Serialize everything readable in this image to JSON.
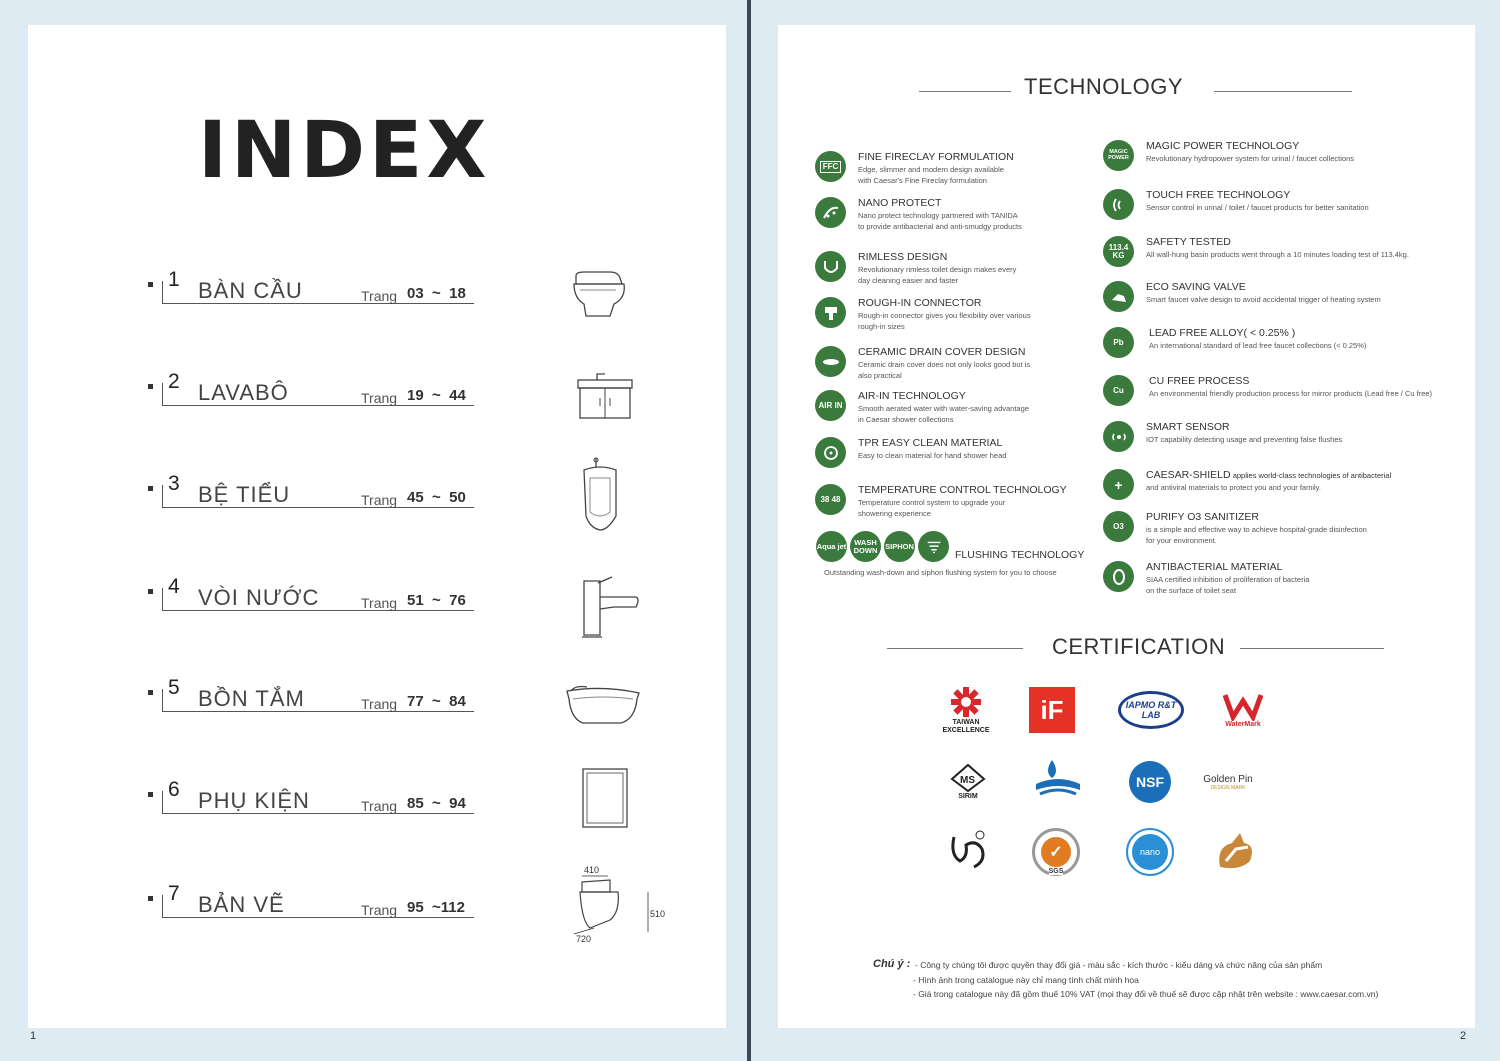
{
  "page_numbers": {
    "left": "1",
    "right": "2"
  },
  "index": {
    "title": "INDEX",
    "entries": [
      {
        "num": "1",
        "label": "BÀN CẦU",
        "trang": "Trang",
        "range": "03  ~  18",
        "icon": "toilet-icon"
      },
      {
        "num": "2",
        "label": "LAVABÔ",
        "trang": "Trang",
        "range": "19  ~  44",
        "icon": "vanity-basin-icon"
      },
      {
        "num": "3",
        "label": "BỆ TIỂU",
        "trang": "Trang",
        "range": "45  ~  50",
        "icon": "urinal-icon"
      },
      {
        "num": "4",
        "label": "VÒI NƯỚC",
        "trang": "Trang",
        "range": "51  ~  76",
        "icon": "faucet-icon"
      },
      {
        "num": "5",
        "label": "BỒN TẮM",
        "trang": "Trang",
        "range": "77  ~  84",
        "icon": "bathtub-icon"
      },
      {
        "num": "6",
        "label": "PHỤ KIỆN",
        "trang": "Trang",
        "range": "85  ~  94",
        "icon": "mirror-icon"
      },
      {
        "num": "7",
        "label": "BẢN VẼ",
        "trang": "Trang",
        "range": "95  ~112",
        "icon": "toilet-drawing-icon"
      }
    ],
    "drawing_dims": {
      "width": "410",
      "height": "510",
      "depth": "720"
    }
  },
  "technology": {
    "title": "TECHNOLOGY",
    "left": [
      {
        "badge": "FFC",
        "name": "FINE FIRECLAY FORMULATION",
        "desc": [
          "Edge, slimmer and modern design available",
          "with Caesar's Fine Fireclay formulation"
        ]
      },
      {
        "badge": "",
        "name": "NANO PROTECT",
        "desc": [
          "Nano protect technology partnered with TANIDA",
          "to provide antibacterial and anti-smudgy products"
        ]
      },
      {
        "badge": "",
        "name": "RIMLESS DESIGN",
        "desc": [
          "Revolutionary rimless toilet design makes every",
          "day cleaning easier and faster"
        ]
      },
      {
        "badge": "",
        "name": "ROUGH-IN CONNECTOR",
        "desc": [
          "Rough-in connector gives you flexibility over various",
          "rough-in sizes"
        ]
      },
      {
        "badge": "",
        "name": "CERAMIC DRAIN COVER DESIGN",
        "desc": [
          "Ceramic drain cover does not only looks good but is",
          "also practical"
        ]
      },
      {
        "badge": "AIR IN",
        "name": "AIR-IN TECHNOLOGY",
        "desc": [
          "Smooth aerated water with water-saving advantage",
          "in Caesar shower collections"
        ]
      },
      {
        "badge": "",
        "name": "TPR EASY CLEAN MATERIAL",
        "desc": [
          "Easy to clean material for hand shower head"
        ]
      },
      {
        "badge": "38 48",
        "name": "TEMPERATURE CONTROL TECHNOLOGY",
        "desc": [
          "Temperature control system to upgrade your",
          "showering experience"
        ]
      }
    ],
    "flushing": {
      "badges": [
        "Aqua jet",
        "WASH DOWN",
        "SIPHON",
        ""
      ],
      "name": "FLUSHING TECHNOLOGY",
      "desc": "Outstanding wash-down and siphon  flushing system for you to choose"
    },
    "right": [
      {
        "badge": "MAGIC POWER",
        "name": "MAGIC POWER TECHNOLOGY",
        "desc": [
          "Revolutionary hydropower system for urinal  / faucet collections"
        ]
      },
      {
        "badge": "",
        "name": "TOUCH FREE TECHNOLOGY",
        "desc": [
          "Sensor control in urinal / toilet / faucet products for  better sanitation"
        ]
      },
      {
        "badge": "113.4 KG",
        "name": "SAFETY TESTED",
        "desc": [
          "All wall-hung basin products went through a 10 minutes  loading test of 113.4kg."
        ]
      },
      {
        "badge": "",
        "name": "ECO SAVING VALVE",
        "desc": [
          "Smart faucet valve design to avoid accidental trigger  of heating system"
        ]
      },
      {
        "badge": "Pb",
        "name": "LEAD FREE ALLOY( < 0.25% )",
        "desc": [
          "An international standard of lead free faucet   collections (< 0.25%)"
        ]
      },
      {
        "badge": "Cu",
        "name": "CU FREE PROCESS",
        "desc": [
          "An environmental friendly production process for mirror  products (Lead free / Cu free)"
        ]
      },
      {
        "badge": "",
        "name": "SMART SENSOR",
        "desc": [
          "IOT capability detecting usage and preventing false flushes"
        ]
      },
      {
        "badge": "+",
        "name": "CAESAR-SHIELD",
        "name_tail": " applies world-class technologies of antibacterial",
        "desc": [
          "and antiviral materials to protect you and your family."
        ]
      },
      {
        "badge": "O3",
        "name": "PURIFY O3 SANITIZER",
        "desc": [
          "is a simple and effective way to achieve hospital-grade disinfection",
          "for your environment."
        ]
      },
      {
        "badge": "",
        "name": "ANTIBACTERIAL MATERIAL",
        "desc": [
          "SIAA certified inhibition of proliferation of bacteria",
          "on the surface of toilet seat"
        ]
      }
    ]
  },
  "certification": {
    "title": "CERTIFICATION",
    "logos": [
      {
        "name": "taiwan-excellence-logo",
        "caption": "TAIWAN EXCELLENCE",
        "color": "#d8282b"
      },
      {
        "name": "if-design-logo",
        "caption": "iF",
        "color": "#e53226"
      },
      {
        "name": "iapmo-logo",
        "caption": "IAPMO R&T LAB",
        "color": "#1c3f8c"
      },
      {
        "name": "watermark-logo",
        "caption": "WaterMark",
        "color": "#d6262b"
      },
      {
        "name": "sirim-logo",
        "caption": "SIRIM",
        "color": "#222222"
      },
      {
        "name": "water-saving-logo",
        "caption": "",
        "color": "#1b6fb8"
      },
      {
        "name": "nsf-logo",
        "caption": "NSF",
        "color": "#1b6fb8"
      },
      {
        "name": "golden-pin-logo",
        "caption": "Golden Pin",
        "color": "#b8912f"
      },
      {
        "name": "cns-logo",
        "caption": "",
        "color": "#222222"
      },
      {
        "name": "sgs-logo",
        "caption": "SGS",
        "color": "#e07b22"
      },
      {
        "name": "nano-mark-logo",
        "caption": "nano",
        "color": "#2a8fd4"
      },
      {
        "name": "green-mark-logo",
        "caption": "",
        "color": "#c9873a"
      }
    ]
  },
  "notes": {
    "label": "Chú ý :",
    "lines": [
      "- Công ty chúng tôi được quyền thay đổi giá - màu sắc - kích thước - kiểu dáng và chức năng của sản phẩm",
      "- Hình ảnh trong catalogue này chỉ mang tính chất minh họa",
      "- Giá trong catalogue này đã gồm thuế 10% VAT (mọi thay đổi về thuế sẽ được cập nhật trên website : www.caesar.com.vn)"
    ]
  },
  "colors": {
    "badge_green": "#3b7a3d",
    "page_bg": "#deebf3"
  }
}
